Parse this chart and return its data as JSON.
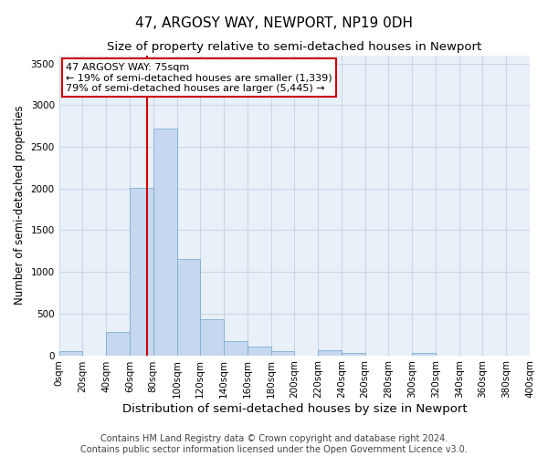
{
  "title": "47, ARGOSY WAY, NEWPORT, NP19 0DH",
  "subtitle": "Size of property relative to semi-detached houses in Newport",
  "xlabel": "Distribution of semi-detached houses by size in Newport",
  "ylabel": "Number of semi-detached properties",
  "bar_edges": [
    0,
    20,
    40,
    60,
    80,
    100,
    120,
    140,
    160,
    180,
    200,
    220,
    240,
    260,
    280,
    300,
    320,
    340,
    360,
    380,
    400
  ],
  "bar_heights": [
    55,
    0,
    275,
    2010,
    2720,
    1150,
    430,
    170,
    100,
    55,
    0,
    65,
    25,
    0,
    0,
    25,
    0,
    0,
    0,
    0
  ],
  "bar_color": "#c5d8f0",
  "bar_edge_color": "#7bafd4",
  "property_value": 75,
  "vline_color": "#cc0000",
  "annotation_text": "47 ARGOSY WAY: 75sqm\n← 19% of semi-detached houses are smaller (1,339)\n79% of semi-detached houses are larger (5,445) →",
  "annotation_box_color": "#ffffff",
  "annotation_box_edge": "#cc0000",
  "ylim": [
    0,
    3600
  ],
  "yticks": [
    0,
    500,
    1000,
    1500,
    2000,
    2500,
    3000,
    3500
  ],
  "tick_labels": [
    "0sqm",
    "20sqm",
    "40sqm",
    "60sqm",
    "80sqm",
    "100sqm",
    "120sqm",
    "140sqm",
    "160sqm",
    "180sqm",
    "200sqm",
    "220sqm",
    "240sqm",
    "260sqm",
    "280sqm",
    "300sqm",
    "320sqm",
    "340sqm",
    "360sqm",
    "380sqm",
    "400sqm"
  ],
  "footer_line1": "Contains HM Land Registry data © Crown copyright and database right 2024.",
  "footer_line2": "Contains public sector information licensed under the Open Government Licence v3.0.",
  "background_color": "#ffffff",
  "axes_bg_color": "#eaf0f8",
  "grid_color": "#c8d8ea",
  "title_fontsize": 11,
  "subtitle_fontsize": 9.5,
  "xlabel_fontsize": 9.5,
  "ylabel_fontsize": 8.5,
  "tick_fontsize": 7.5,
  "annotation_fontsize": 8,
  "footer_fontsize": 7
}
